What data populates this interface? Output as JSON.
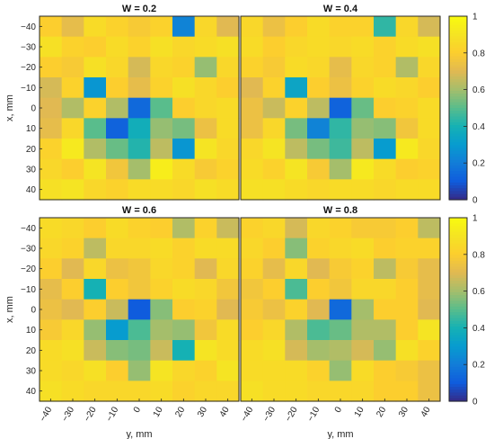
{
  "chart_data": {
    "type": "heatmap",
    "colormap": "parula",
    "x_axis_label": "x, mm",
    "y_axis_label": "y, mm",
    "row_ticks": [
      "−40",
      "−30",
      "−20",
      "−10",
      "0",
      "10",
      "20",
      "30",
      "40"
    ],
    "col_ticks": [
      "−40",
      "−30",
      "−20",
      "−10",
      "0",
      "10",
      "20",
      "30",
      "40"
    ],
    "row_values": [
      -40,
      -30,
      -20,
      -10,
      0,
      10,
      20,
      30,
      40
    ],
    "col_values": [
      -40,
      -30,
      -20,
      -10,
      0,
      10,
      20,
      30,
      40
    ],
    "color_range": [
      0,
      1
    ],
    "colorbar_ticks": [
      "0",
      "0.2",
      "0.4",
      "0.6",
      "0.8",
      "1"
    ],
    "panels": [
      {
        "title": "W = 0.2",
        "values": [
          [
            0.8,
            0.72,
            0.86,
            0.82,
            0.78,
            0.82,
            0.22,
            0.84,
            0.7
          ],
          [
            0.88,
            0.82,
            0.8,
            0.86,
            0.82,
            0.88,
            0.84,
            0.86,
            0.88
          ],
          [
            0.8,
            0.78,
            0.88,
            0.84,
            0.68,
            0.84,
            0.82,
            0.58,
            0.84
          ],
          [
            0.68,
            0.82,
            0.28,
            0.8,
            0.72,
            0.82,
            0.88,
            0.84,
            0.8
          ],
          [
            0.7,
            0.62,
            0.82,
            0.62,
            0.14,
            0.5,
            0.8,
            0.84,
            0.86
          ],
          [
            0.72,
            0.84,
            0.5,
            0.12,
            0.38,
            0.58,
            0.54,
            0.74,
            0.86
          ],
          [
            0.82,
            0.92,
            0.62,
            0.52,
            0.42,
            0.64,
            0.28,
            0.9,
            0.84
          ],
          [
            0.84,
            0.8,
            0.9,
            0.76,
            0.6,
            0.94,
            0.86,
            0.78,
            0.82
          ],
          [
            0.88,
            0.9,
            0.84,
            0.82,
            0.86,
            0.86,
            0.84,
            0.88,
            0.86
          ]
        ]
      },
      {
        "title": "W = 0.4",
        "values": [
          [
            0.84,
            0.74,
            0.8,
            0.86,
            0.82,
            0.82,
            0.44,
            0.84,
            0.68
          ],
          [
            0.86,
            0.8,
            0.84,
            0.86,
            0.84,
            0.86,
            0.82,
            0.86,
            0.88
          ],
          [
            0.82,
            0.78,
            0.86,
            0.84,
            0.72,
            0.84,
            0.82,
            0.62,
            0.84
          ],
          [
            0.7,
            0.82,
            0.34,
            0.8,
            0.74,
            0.82,
            0.86,
            0.84,
            0.8
          ],
          [
            0.74,
            0.66,
            0.82,
            0.64,
            0.12,
            0.52,
            0.8,
            0.82,
            0.86
          ],
          [
            0.74,
            0.84,
            0.54,
            0.22,
            0.44,
            0.58,
            0.56,
            0.76,
            0.86
          ],
          [
            0.84,
            0.9,
            0.64,
            0.54,
            0.46,
            0.64,
            0.3,
            0.92,
            0.84
          ],
          [
            0.86,
            0.82,
            0.9,
            0.78,
            0.6,
            0.92,
            0.86,
            0.8,
            0.82
          ],
          [
            0.88,
            0.88,
            0.86,
            0.84,
            0.86,
            0.86,
            0.84,
            0.86,
            0.86
          ]
        ]
      },
      {
        "title": "W = 0.6",
        "values": [
          [
            0.86,
            0.84,
            0.8,
            0.86,
            0.82,
            0.8,
            0.62,
            0.82,
            0.66
          ],
          [
            0.84,
            0.82,
            0.64,
            0.84,
            0.84,
            0.86,
            0.82,
            0.86,
            0.86
          ],
          [
            0.8,
            0.7,
            0.84,
            0.74,
            0.76,
            0.84,
            0.82,
            0.7,
            0.84
          ],
          [
            0.72,
            0.8,
            0.4,
            0.8,
            0.76,
            0.82,
            0.86,
            0.84,
            0.76
          ],
          [
            0.74,
            0.7,
            0.8,
            0.66,
            0.1,
            0.56,
            0.8,
            0.82,
            0.7
          ],
          [
            0.78,
            0.84,
            0.58,
            0.3,
            0.48,
            0.6,
            0.58,
            0.76,
            0.86
          ],
          [
            0.86,
            0.88,
            0.66,
            0.56,
            0.54,
            0.66,
            0.4,
            0.9,
            0.86
          ],
          [
            0.86,
            0.84,
            0.88,
            0.8,
            0.58,
            0.9,
            0.84,
            0.82,
            0.9
          ],
          [
            0.88,
            0.86,
            0.84,
            0.84,
            0.84,
            0.86,
            0.82,
            0.84,
            0.84
          ]
        ]
      },
      {
        "title": "W = 0.8",
        "values": [
          [
            0.82,
            0.84,
            0.68,
            0.84,
            0.82,
            0.78,
            0.78,
            0.8,
            0.64
          ],
          [
            0.84,
            0.8,
            0.56,
            0.82,
            0.84,
            0.86,
            0.8,
            0.82,
            0.82
          ],
          [
            0.82,
            0.72,
            0.84,
            0.7,
            0.78,
            0.82,
            0.64,
            0.78,
            0.72
          ],
          [
            0.76,
            0.8,
            0.48,
            0.8,
            0.76,
            0.84,
            0.84,
            0.8,
            0.72
          ],
          [
            0.78,
            0.74,
            0.82,
            0.7,
            0.14,
            0.6,
            0.8,
            0.8,
            0.7
          ],
          [
            0.8,
            0.84,
            0.62,
            0.48,
            0.52,
            0.62,
            0.62,
            0.8,
            0.9
          ],
          [
            0.86,
            0.88,
            0.68,
            0.6,
            0.62,
            0.68,
            0.58,
            0.88,
            0.82
          ],
          [
            0.86,
            0.86,
            0.86,
            0.82,
            0.58,
            0.86,
            0.8,
            0.78,
            0.74
          ],
          [
            0.88,
            0.86,
            0.86,
            0.84,
            0.84,
            0.84,
            0.8,
            0.8,
            0.74
          ]
        ]
      }
    ]
  },
  "colors": {
    "background": "#ffffff",
    "axis": "#262626"
  }
}
